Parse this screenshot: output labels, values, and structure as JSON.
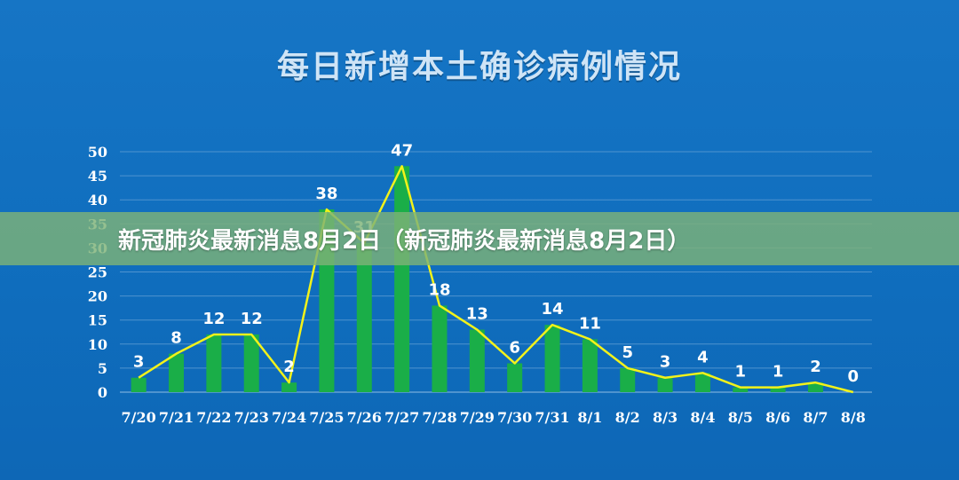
{
  "banner": {
    "text": "新冠肺炎最新消息8月2日（新冠肺炎最新消息8月2日）"
  },
  "colors": {
    "background": "#0f6fbf",
    "bar": "#1aae48",
    "line": "#f2f21a",
    "text": "#ffffff",
    "banner": "#7eb278"
  },
  "chart_data": {
    "type": "bar",
    "title": "每日新增本土确诊病例情况",
    "xlabel": "",
    "ylabel": "",
    "ylim": [
      0,
      50
    ],
    "yticks": [
      0,
      5,
      10,
      15,
      20,
      25,
      30,
      35,
      40,
      45,
      50
    ],
    "grid": true,
    "categories": [
      "7/20",
      "7/21",
      "7/22",
      "7/23",
      "7/24",
      "7/25",
      "7/26",
      "7/27",
      "7/28",
      "7/29",
      "7/30",
      "7/31",
      "8/1",
      "8/2",
      "8/3",
      "8/4",
      "8/5",
      "8/6",
      "8/7",
      "8/8"
    ],
    "series": [
      {
        "kind": "bar",
        "values": [
          3,
          8,
          12,
          12,
          2,
          38,
          31,
          47,
          18,
          13,
          6,
          14,
          11,
          5,
          3,
          4,
          1,
          1,
          2,
          0
        ]
      },
      {
        "kind": "line",
        "values": [
          3,
          8,
          12,
          12,
          2,
          38,
          31,
          47,
          18,
          13,
          6,
          14,
          11,
          5,
          3,
          4,
          1,
          1,
          2,
          0
        ]
      }
    ],
    "data_labels": [
      "3",
      "8",
      "12",
      "12",
      "2",
      "38",
      "31",
      "47",
      "18",
      "13",
      "6",
      "14",
      "11",
      "5",
      "3",
      "4",
      "1",
      "1",
      "2",
      "0"
    ]
  }
}
